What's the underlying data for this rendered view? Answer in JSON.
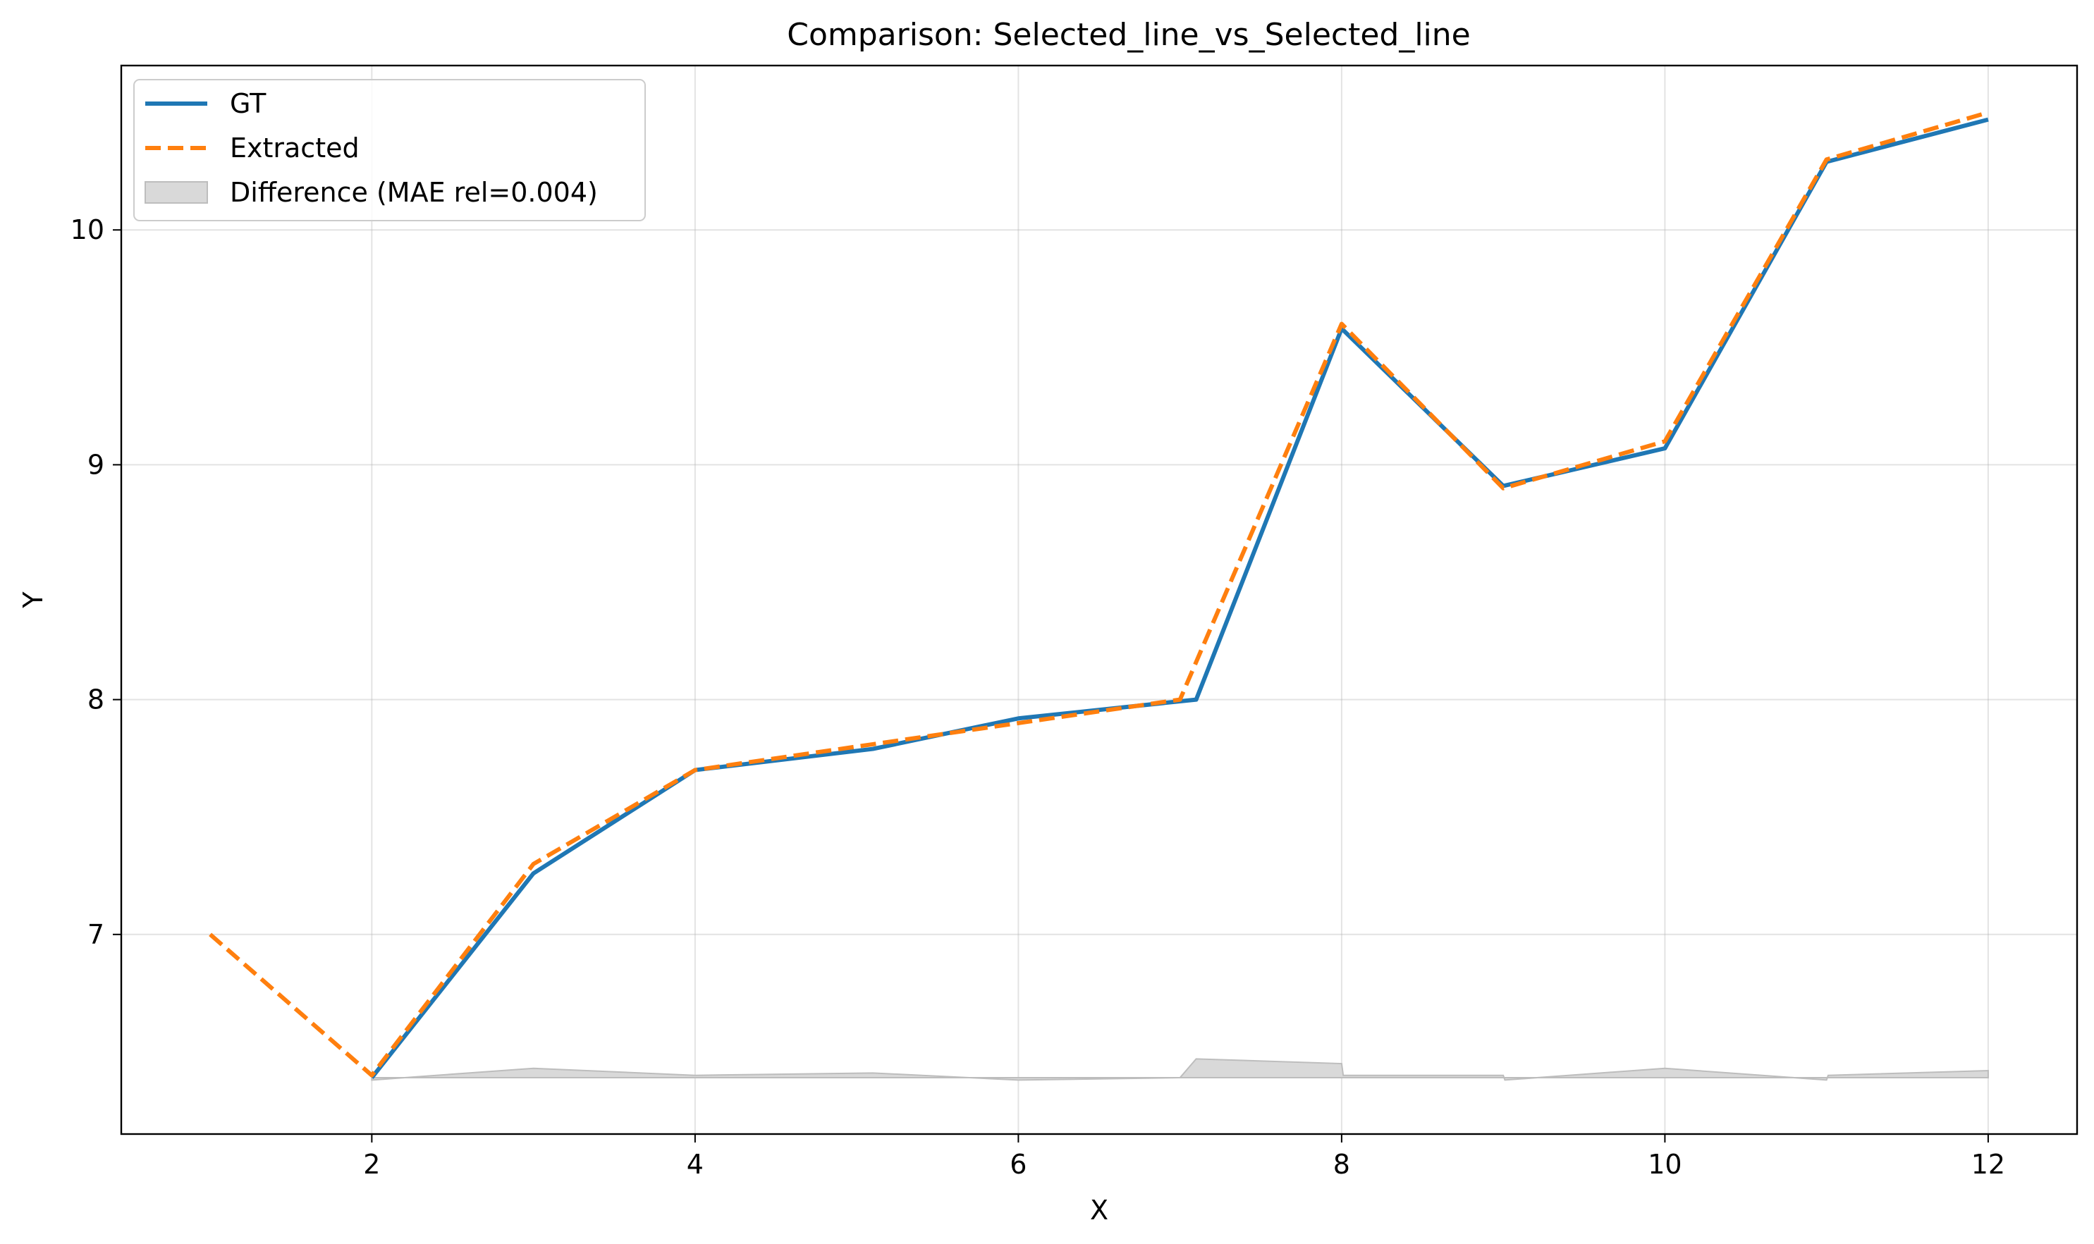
{
  "chart_data": {
    "type": "line",
    "title": "Comparison: Selected_line_vs_Selected_line",
    "xlabel": "X",
    "ylabel": "Y",
    "xlim": [
      0.45,
      12.55
    ],
    "ylim": [
      6.15,
      10.7
    ],
    "xticks": [
      2,
      4,
      6,
      8,
      10,
      12
    ],
    "yticks": [
      7,
      8,
      9,
      10
    ],
    "grid": true,
    "legend_position": "top-left",
    "series": [
      {
        "name": "GT",
        "color": "#1f77b4",
        "style": "solid",
        "x": [
          2,
          3,
          4,
          5.1,
          6,
          7.1,
          8,
          9,
          10,
          11,
          12
        ],
        "y": [
          6.39,
          7.26,
          7.7,
          7.79,
          7.92,
          8.0,
          9.58,
          8.91,
          9.07,
          10.29,
          10.47
        ]
      },
      {
        "name": "Extracted",
        "color": "#ff7f0e",
        "style": "dashed",
        "x": [
          1,
          2,
          3,
          4,
          5.1,
          6,
          7,
          8,
          9,
          10,
          11,
          12
        ],
        "y": [
          7.0,
          6.4,
          7.3,
          7.7,
          7.81,
          7.9,
          8.0,
          9.6,
          8.9,
          9.1,
          10.3,
          10.5
        ]
      }
    ],
    "difference": {
      "name": "Difference (MAE rel=0.004)",
      "color": "#d9d9d9",
      "baseline": 6.39,
      "x": [
        2,
        3,
        4,
        5.1,
        6,
        7,
        7.1,
        8,
        8.01,
        9,
        9.01,
        10,
        11,
        11.01,
        12
      ],
      "y": [
        6.38,
        6.43,
        6.4,
        6.41,
        6.38,
        6.39,
        6.47,
        6.45,
        6.4,
        6.4,
        6.38,
        6.43,
        6.38,
        6.4,
        6.42
      ]
    }
  }
}
